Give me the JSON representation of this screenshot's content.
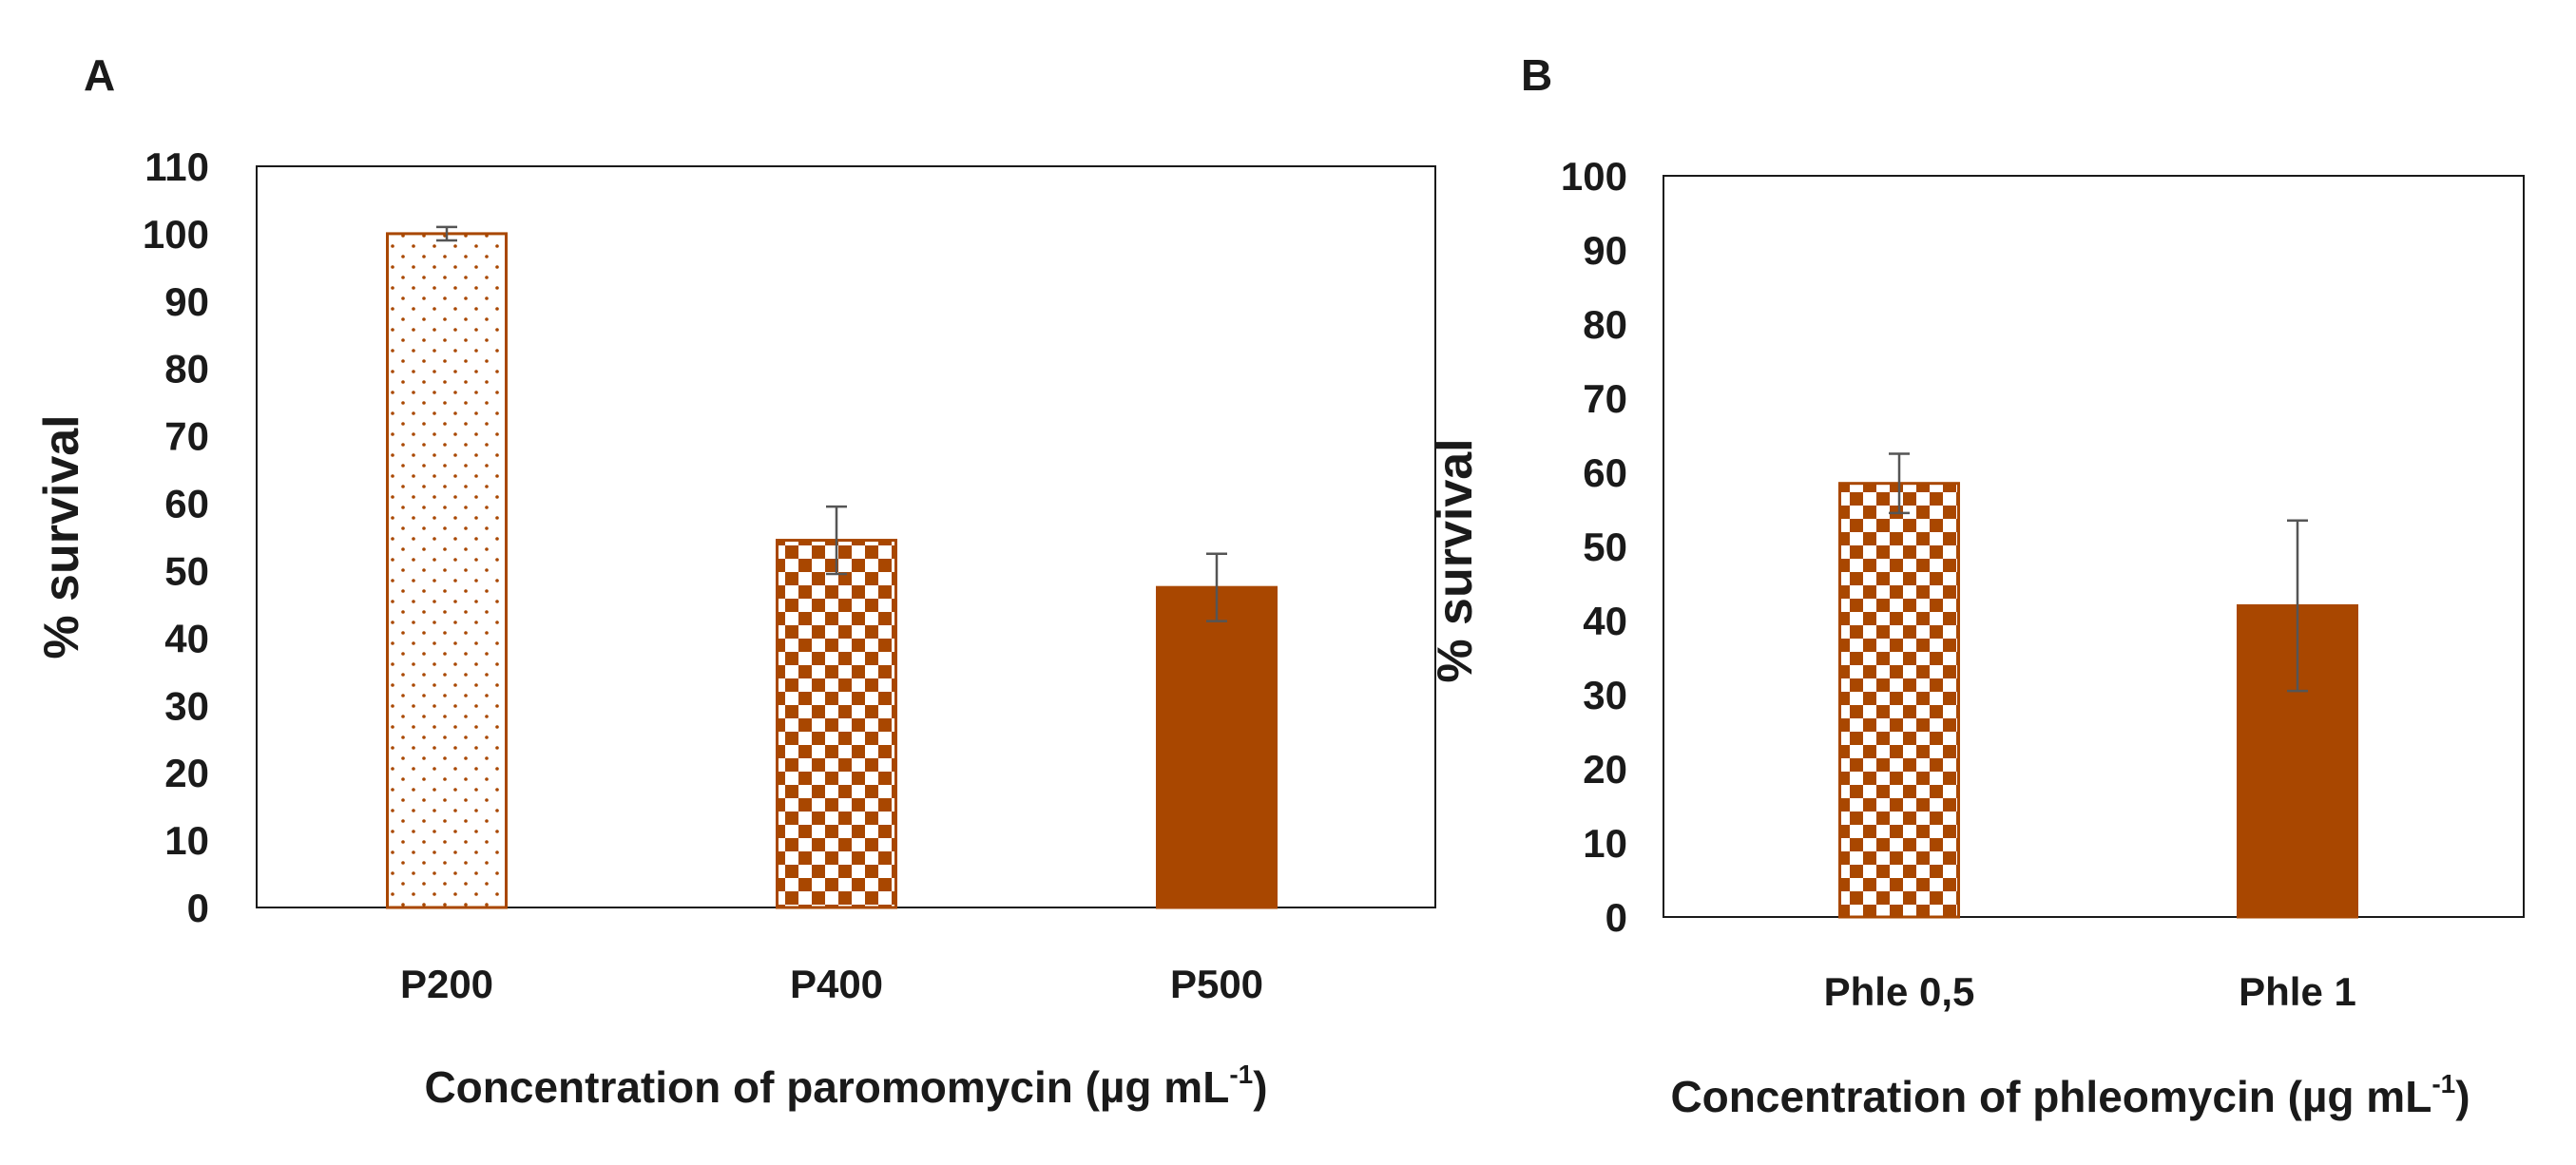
{
  "colors": {
    "bar": "#a94700",
    "bar_light": "#ffffff",
    "axis": "#1a1a1a",
    "error": "#555555"
  },
  "chart_data": [
    {
      "panel": "A",
      "type": "bar",
      "title": "",
      "ylabel": "% survival",
      "xlabel": "Concentration of paromomycin (µg mL",
      "xlabel_sup": "-1",
      "xlabel_suffix": ")",
      "ylim": [
        0,
        110
      ],
      "yticks": [
        0,
        10,
        20,
        30,
        40,
        50,
        60,
        70,
        80,
        90,
        100,
        110
      ],
      "grid": false,
      "categories": [
        "P200",
        "P400",
        "P500"
      ],
      "values": [
        100,
        54.5,
        47.5
      ],
      "errors": [
        1,
        5,
        5
      ],
      "patterns": [
        "dots",
        "checker",
        "solid"
      ]
    },
    {
      "panel": "B",
      "type": "bar",
      "title": "",
      "ylabel": "% survival",
      "xlabel": "Concentration of phleomycin (µg mL",
      "xlabel_sup": "-1",
      "xlabel_suffix": ")",
      "ylim": [
        0,
        100
      ],
      "yticks": [
        0,
        10,
        20,
        30,
        40,
        50,
        60,
        70,
        80,
        90,
        100
      ],
      "grid": false,
      "categories": [
        "Phle 0,5",
        "Phle 1"
      ],
      "values": [
        58.5,
        42
      ],
      "errors": [
        4,
        11.5
      ],
      "patterns": [
        "checker",
        "solid"
      ]
    }
  ]
}
